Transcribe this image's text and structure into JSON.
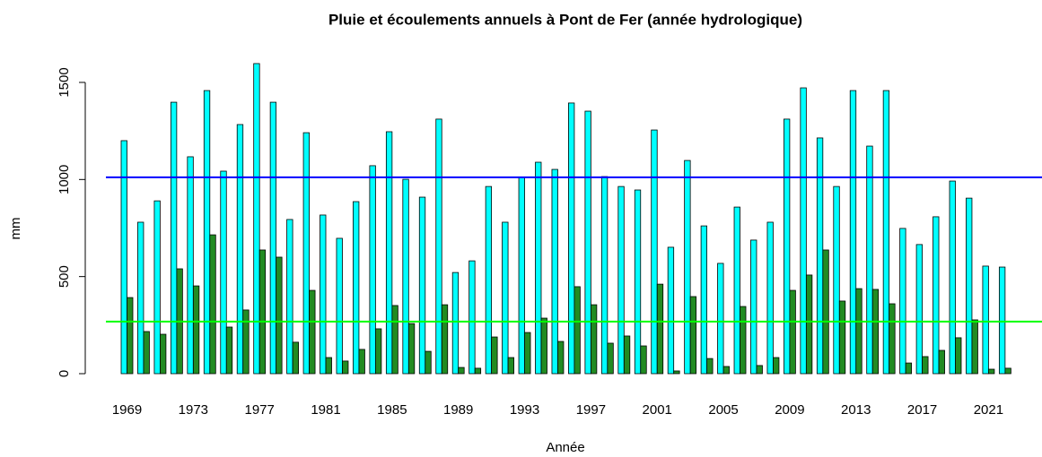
{
  "chart_data": {
    "type": "bar",
    "title": "Pluie et écoulements annuels à Pont de Fer (année hydrologique)",
    "x_label": "Année",
    "y_label": "mm",
    "categories": [
      1969,
      null,
      null,
      null,
      1973,
      null,
      null,
      null,
      1977,
      null,
      null,
      null,
      1981,
      null,
      null,
      null,
      1985,
      null,
      null,
      null,
      1989,
      null,
      null,
      null,
      1993,
      null,
      null,
      null,
      1997,
      null,
      null,
      null,
      2001,
      null,
      null,
      null,
      2005,
      null,
      null,
      null,
      2009,
      null,
      null,
      null,
      2013,
      null,
      null,
      null,
      2017,
      null,
      null,
      null,
      2021,
      null
    ],
    "series": [
      {
        "color": "#00ffff",
        "values": [
          1200,
          780,
          890,
          1398,
          1117,
          1458,
          1043,
          1283,
          1597,
          1398,
          794,
          1241,
          817,
          697,
          886,
          1071,
          1246,
          1001,
          909,
          1311,
          521,
          581,
          964,
          780,
          1011,
          1089,
          1052,
          1394,
          1352,
          1015,
          964,
          946,
          1255,
          651,
          1098,
          761,
          568,
          858,
          688,
          780,
          1311,
          1472,
          1214,
          964,
          1458,
          1172,
          1458,
          748,
          665,
          808,
          992,
          904,
          554,
          549
        ]
      },
      {
        "color": "#228b22",
        "values": [
          392,
          217,
          203,
          540,
          452,
          715,
          240,
          328,
          637,
          600,
          162,
          429,
          83,
          65,
          125,
          231,
          351,
          258,
          115,
          355,
          32,
          28,
          189,
          83,
          212,
          286,
          166,
          448,
          355,
          157,
          194,
          143,
          461,
          14,
          397,
          78,
          37,
          346,
          42,
          83,
          429,
          508,
          637,
          374,
          438,
          434,
          360,
          55,
          88,
          120,
          185,
          277,
          23,
          28
        ]
      }
    ],
    "hlines": [
      {
        "value": 1011,
        "color": "#0000ff"
      },
      {
        "value": 268,
        "color": "#00ff00"
      }
    ],
    "ylim": [
      0,
      1600
    ],
    "yticks": [
      0,
      500,
      1000,
      1500
    ]
  }
}
